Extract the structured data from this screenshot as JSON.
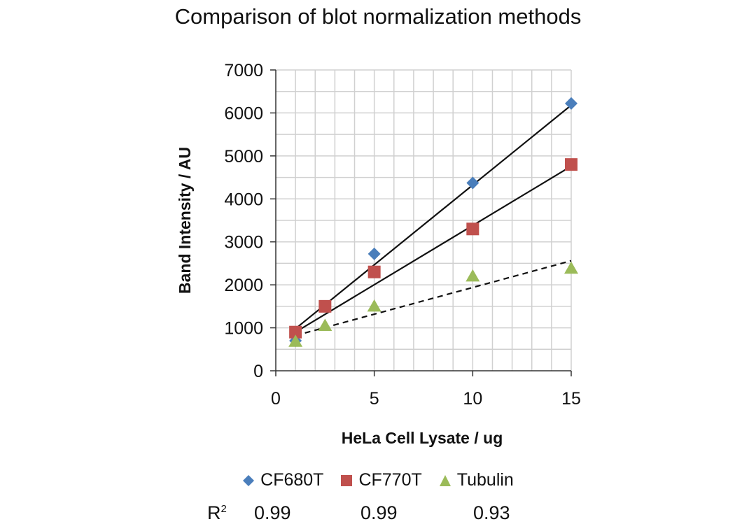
{
  "chart_data": {
    "type": "scatter",
    "title": "Comparison of blot normalization methods",
    "xlabel": "HeLa Cell Lysate / ug",
    "ylabel": "Band Intensity  / AU",
    "xlim": [
      0,
      15
    ],
    "ylim": [
      0,
      7000
    ],
    "xticks": [
      0,
      5,
      10,
      15
    ],
    "yticks": [
      0,
      1000,
      2000,
      3000,
      4000,
      5000,
      6000,
      7000
    ],
    "grid": true,
    "x": [
      1,
      2.5,
      5,
      10,
      15
    ],
    "series": [
      {
        "name": "CF680T",
        "color": "#4a7ebb",
        "marker": "diamond",
        "values": [
          700,
          null,
          2720,
          4370,
          6220
        ],
        "trendline": {
          "x": [
            1,
            15
          ],
          "y": [
            980,
            6180
          ],
          "style": "solid"
        },
        "r2": "0.99"
      },
      {
        "name": "CF770T",
        "color": "#c0504d",
        "marker": "square",
        "values": [
          900,
          1500,
          2300,
          3300,
          4800
        ],
        "trendline": {
          "x": [
            1,
            15
          ],
          "y": [
            900,
            4760
          ],
          "style": "solid"
        },
        "r2": "0.99"
      },
      {
        "name": "Tubulin",
        "color": "#9bbb59",
        "marker": "triangle",
        "values": [
          680,
          1050,
          1500,
          2200,
          2380
        ],
        "trendline": {
          "x": [
            1,
            15
          ],
          "y": [
            820,
            2560
          ],
          "style": "dashed"
        },
        "r2": "0.93"
      }
    ],
    "r2_label": "R",
    "r2_sup": "2"
  }
}
